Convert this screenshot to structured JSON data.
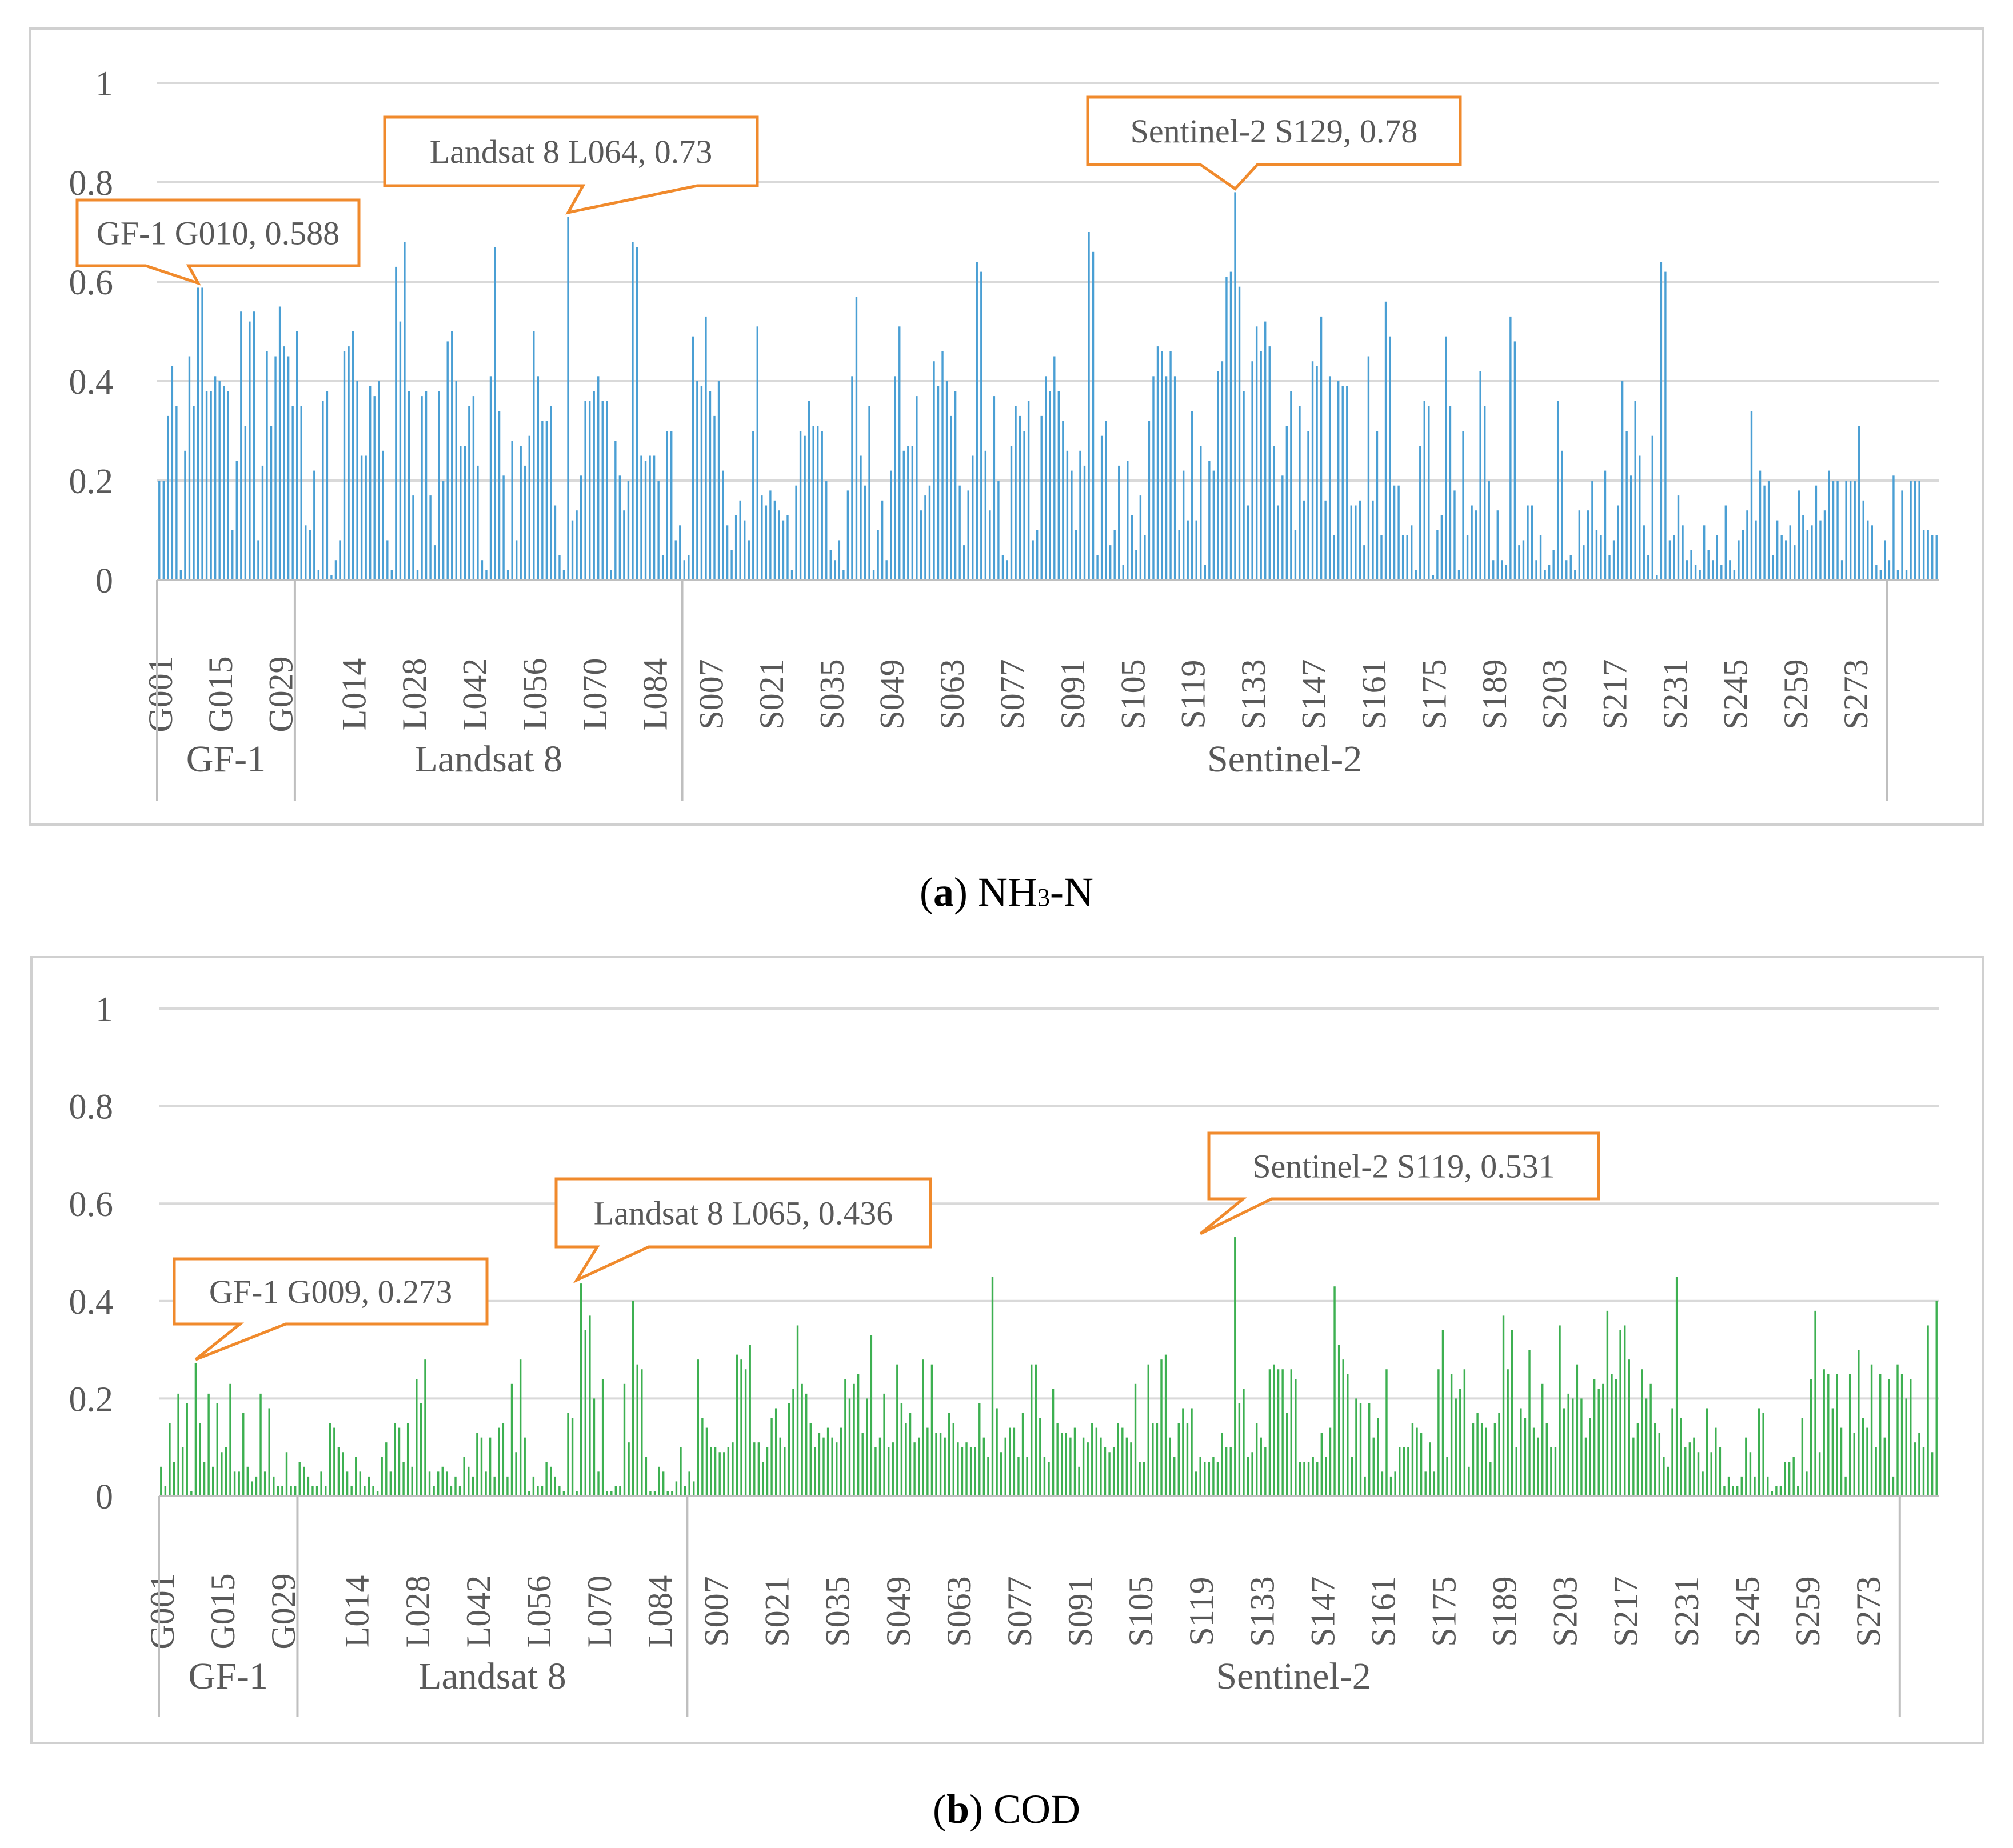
{
  "figure": {
    "captions": [
      {
        "letter": "a",
        "open": "(",
        "close": ")",
        "text": " NH",
        "sub": "3",
        "tail": "-N"
      },
      {
        "letter": "b",
        "open": "(",
        "close": ")",
        "text": " COD",
        "sub": "",
        "tail": ""
      }
    ]
  },
  "chart_data": [
    {
      "type": "bar",
      "title": "(a) NH3-N",
      "color": "#4a9fd4",
      "ylim": [
        0,
        1
      ],
      "yticks": [
        0,
        0.2,
        0.4,
        0.6,
        0.8,
        1
      ],
      "ytick_labels": [
        "0",
        "0.2",
        "0.4",
        "0.6",
        "0.8",
        "1"
      ],
      "grid": true,
      "xtick_labels": [
        "G001",
        "G015",
        "G029",
        "L014",
        "L028",
        "L042",
        "L056",
        "L070",
        "L084",
        "S007",
        "S021",
        "S035",
        "S049",
        "S063",
        "S077",
        "S091",
        "S105",
        "S119",
        "S133",
        "S147",
        "S161",
        "S175",
        "S189",
        "S203",
        "S217",
        "S231",
        "S245",
        "S259",
        "S273"
      ],
      "groups": [
        {
          "name": "GF-1",
          "prefix": "G",
          "count": 32
        },
        {
          "name": "Landsat 8",
          "prefix": "L",
          "count": 90
        },
        {
          "name": "Sentinel-2",
          "prefix": "S",
          "count": 280
        }
      ],
      "annotations": [
        {
          "text": "GF-1 G010, 0.588",
          "category": "G010",
          "value": 0.588
        },
        {
          "text": "Landsat 8 L064, 0.73",
          "category": "L064",
          "value": 0.73
        },
        {
          "text": "Sentinel-2 S129, 0.78",
          "category": "S129",
          "value": 0.78
        }
      ],
      "values": [
        0.2,
        0.2,
        0.33,
        0.43,
        0.35,
        0.02,
        0.26,
        0.45,
        0.35,
        0.588,
        0.588,
        0.38,
        0.38,
        0.41,
        0.4,
        0.39,
        0.38,
        0.1,
        0.24,
        0.54,
        0.31,
        0.52,
        0.54,
        0.08,
        0.23,
        0.46,
        0.31,
        0.45,
        0.55,
        0.47,
        0.45,
        0.35,
        0.5,
        0.35,
        0.11,
        0.1,
        0.22,
        0.02,
        0.36,
        0.38,
        0.01,
        0.04,
        0.08,
        0.46,
        0.47,
        0.5,
        0.4,
        0.25,
        0.25,
        0.39,
        0.37,
        0.4,
        0.26,
        0.08,
        0.02,
        0.63,
        0.52,
        0.68,
        0.38,
        0.17,
        0.02,
        0.37,
        0.38,
        0.17,
        0.07,
        0.38,
        0.2,
        0.48,
        0.5,
        0.4,
        0.27,
        0.27,
        0.35,
        0.37,
        0.23,
        0.04,
        0.02,
        0.41,
        0.67,
        0.34,
        0.21,
        0.02,
        0.28,
        0.08,
        0.27,
        0.23,
        0.29,
        0.5,
        0.41,
        0.32,
        0.32,
        0.35,
        0.15,
        0.05,
        0.02,
        0.73,
        0.12,
        0.14,
        0.21,
        0.36,
        0.36,
        0.38,
        0.41,
        0.36,
        0.36,
        0.02,
        0.28,
        0.21,
        0.14,
        0.2,
        0.68,
        0.67,
        0.25,
        0.24,
        0.25,
        0.25,
        0.2,
        0.05,
        0.3,
        0.3,
        0.08,
        0.11,
        0.04,
        0.05,
        0.49,
        0.4,
        0.39,
        0.53,
        0.38,
        0.33,
        0.4,
        0.22,
        0.11,
        0.06,
        0.13,
        0.16,
        0.12,
        0.08,
        0.3,
        0.51,
        0.17,
        0.15,
        0.18,
        0.16,
        0.14,
        0.12,
        0.13,
        0.02,
        0.19,
        0.3,
        0.29,
        0.36,
        0.31,
        0.31,
        0.3,
        0.2,
        0.06,
        0.04,
        0.08,
        0.02,
        0.18,
        0.41,
        0.57,
        0.25,
        0.19,
        0.35,
        0.02,
        0.1,
        0.16,
        0.04,
        0.22,
        0.41,
        0.51,
        0.26,
        0.27,
        0.27,
        0.37,
        0.14,
        0.17,
        0.19,
        0.44,
        0.39,
        0.46,
        0.4,
        0.33,
        0.38,
        0.19,
        0.07,
        0.18,
        0.25,
        0.64,
        0.62,
        0.26,
        0.14,
        0.37,
        0.2,
        0.05,
        0.04,
        0.27,
        0.35,
        0.33,
        0.3,
        0.36,
        0.08,
        0.1,
        0.33,
        0.41,
        0.38,
        0.45,
        0.38,
        0.32,
        0.26,
        0.22,
        0.1,
        0.26,
        0.23,
        0.7,
        0.66,
        0.05,
        0.29,
        0.32,
        0.07,
        0.1,
        0.23,
        0.03,
        0.24,
        0.13,
        0.06,
        0.17,
        0.09,
        0.32,
        0.41,
        0.47,
        0.46,
        0.41,
        0.46,
        0.41,
        0.1,
        0.22,
        0.12,
        0.34,
        0.12,
        0.27,
        0.03,
        0.24,
        0.22,
        0.42,
        0.44,
        0.61,
        0.62,
        0.78,
        0.59,
        0.38,
        0.15,
        0.44,
        0.51,
        0.46,
        0.52,
        0.47,
        0.27,
        0.15,
        0.21,
        0.31,
        0.38,
        0.1,
        0.35,
        0.16,
        0.3,
        0.44,
        0.43,
        0.53,
        0.16,
        0.41,
        0.09,
        0.4,
        0.39,
        0.39,
        0.15,
        0.15,
        0.16,
        0.07,
        0.45,
        0.16,
        0.3,
        0.09,
        0.56,
        0.49,
        0.19,
        0.19,
        0.09,
        0.09,
        0.11,
        0.02,
        0.27,
        0.36,
        0.35,
        0.01,
        0.1,
        0.13,
        0.49,
        0.35,
        0.18,
        0.02,
        0.3,
        0.09,
        0.15,
        0.14,
        0.42,
        0.35,
        0.2,
        0.04,
        0.14,
        0.04,
        0.03,
        0.53,
        0.48,
        0.07,
        0.08,
        0.15,
        0.15,
        0.04,
        0.09,
        0.02,
        0.03,
        0.06,
        0.36,
        0.26,
        0.04,
        0.05,
        0.02,
        0.14,
        0.07,
        0.14,
        0.2,
        0.1,
        0.09,
        0.22,
        0.05,
        0.08,
        0.15,
        0.4,
        0.3,
        0.21,
        0.36,
        0.25,
        0.11,
        0.05,
        0.29,
        0.01,
        0.64,
        0.62,
        0.08,
        0.09,
        0.17,
        0.11,
        0.04,
        0.06,
        0.03,
        0.02,
        0.11,
        0.06,
        0.04,
        0.09,
        0.03,
        0.15,
        0.04,
        0.02,
        0.08,
        0.1,
        0.14,
        0.34,
        0.12,
        0.22,
        0.19,
        0.2,
        0.05,
        0.12,
        0.09,
        0.08,
        0.11,
        0.07,
        0.18,
        0.13,
        0.1,
        0.11,
        0.19,
        0.12,
        0.14,
        0.22,
        0.2,
        0.2,
        0.04,
        0.2,
        0.2,
        0.2,
        0.31,
        0.16,
        0.12,
        0.11,
        0.03,
        0.02,
        0.08,
        0.04,
        0.21,
        0.02,
        0.18,
        0.02,
        0.2,
        0.2,
        0.2,
        0.1,
        0.1,
        0.09,
        0.09
      ]
    },
    {
      "type": "bar",
      "title": "(b) COD",
      "color": "#3db051",
      "ylim": [
        0,
        1
      ],
      "yticks": [
        0,
        0.2,
        0.4,
        0.6,
        0.8,
        1
      ],
      "ytick_labels": [
        "0",
        "0.2",
        "0.4",
        "0.6",
        "0.8",
        "1"
      ],
      "grid": true,
      "xtick_labels": [
        "G001",
        "G015",
        "G029",
        "L014",
        "L028",
        "L042",
        "L056",
        "L070",
        "L084",
        "S007",
        "S021",
        "S035",
        "S049",
        "S063",
        "S077",
        "S091",
        "S105",
        "S119",
        "S133",
        "S147",
        "S161",
        "S175",
        "S189",
        "S203",
        "S217",
        "S231",
        "S245",
        "S259",
        "S273"
      ],
      "groups": [
        {
          "name": "GF-1",
          "prefix": "G",
          "count": 32
        },
        {
          "name": "Landsat 8",
          "prefix": "L",
          "count": 90
        },
        {
          "name": "Sentinel-2",
          "prefix": "S",
          "count": 280
        }
      ],
      "annotations": [
        {
          "text": "GF-1 G009, 0.273",
          "category": "G009",
          "value": 0.273
        },
        {
          "text": "Landsat 8 L065, 0.436",
          "category": "L065",
          "value": 0.436
        },
        {
          "text": "Sentinel-2 S119, 0.531",
          "category": "S119",
          "value": 0.531
        }
      ],
      "values": [
        0.06,
        0.02,
        0.15,
        0.07,
        0.21,
        0.1,
        0.19,
        0.01,
        0.273,
        0.15,
        0.07,
        0.21,
        0.06,
        0.19,
        0.09,
        0.1,
        0.23,
        0.05,
        0.05,
        0.17,
        0.06,
        0.03,
        0.04,
        0.21,
        0.05,
        0.18,
        0.04,
        0.02,
        0.02,
        0.09,
        0.02,
        0.02,
        0.07,
        0.06,
        0.04,
        0.02,
        0.02,
        0.05,
        0.02,
        0.15,
        0.14,
        0.1,
        0.09,
        0.05,
        0.02,
        0.08,
        0.05,
        0.02,
        0.04,
        0.02,
        0.01,
        0.08,
        0.11,
        0.05,
        0.15,
        0.14,
        0.07,
        0.15,
        0.06,
        0.24,
        0.19,
        0.28,
        0.05,
        0.02,
        0.05,
        0.06,
        0.05,
        0.02,
        0.04,
        0.02,
        0.08,
        0.06,
        0.04,
        0.13,
        0.12,
        0.05,
        0.12,
        0.04,
        0.14,
        0.15,
        0.04,
        0.23,
        0.09,
        0.28,
        0.12,
        0.01,
        0.04,
        0.02,
        0.02,
        0.07,
        0.06,
        0.04,
        0.02,
        0.01,
        0.17,
        0.16,
        0.01,
        0.436,
        0.34,
        0.37,
        0.2,
        0.05,
        0.24,
        0.01,
        0.01,
        0.02,
        0.02,
        0.23,
        0.11,
        0.4,
        0.27,
        0.26,
        0.08,
        0.01,
        0.01,
        0.06,
        0.05,
        0.01,
        0.01,
        0.03,
        0.1,
        0.02,
        0.05,
        0.03,
        0.28,
        0.16,
        0.14,
        0.1,
        0.1,
        0.09,
        0.09,
        0.1,
        0.11,
        0.29,
        0.28,
        0.26,
        0.31,
        0.11,
        0.11,
        0.07,
        0.1,
        0.16,
        0.18,
        0.12,
        0.1,
        0.19,
        0.22,
        0.35,
        0.23,
        0.21,
        0.15,
        0.1,
        0.13,
        0.12,
        0.14,
        0.12,
        0.11,
        0.14,
        0.24,
        0.2,
        0.23,
        0.25,
        0.13,
        0.2,
        0.33,
        0.1,
        0.12,
        0.21,
        0.1,
        0.11,
        0.27,
        0.19,
        0.15,
        0.17,
        0.11,
        0.12,
        0.28,
        0.14,
        0.27,
        0.13,
        0.13,
        0.12,
        0.17,
        0.15,
        0.11,
        0.1,
        0.11,
        0.1,
        0.1,
        0.19,
        0.12,
        0.08,
        0.45,
        0.18,
        0.09,
        0.12,
        0.14,
        0.14,
        0.08,
        0.17,
        0.08,
        0.27,
        0.27,
        0.16,
        0.08,
        0.07,
        0.22,
        0.15,
        0.13,
        0.13,
        0.12,
        0.14,
        0.06,
        0.12,
        0.11,
        0.15,
        0.14,
        0.12,
        0.1,
        0.09,
        0.1,
        0.15,
        0.14,
        0.12,
        0.11,
        0.23,
        0.07,
        0.07,
        0.27,
        0.15,
        0.15,
        0.28,
        0.29,
        0.12,
        0.08,
        0.15,
        0.18,
        0.15,
        0.18,
        0.05,
        0.08,
        0.07,
        0.07,
        0.08,
        0.07,
        0.13,
        0.1,
        0.1,
        0.531,
        0.19,
        0.22,
        0.08,
        0.09,
        0.15,
        0.12,
        0.1,
        0.26,
        0.27,
        0.26,
        0.26,
        0.17,
        0.26,
        0.24,
        0.07,
        0.07,
        0.07,
        0.08,
        0.07,
        0.13,
        0.08,
        0.14,
        0.43,
        0.31,
        0.28,
        0.25,
        0.08,
        0.2,
        0.19,
        0.04,
        0.19,
        0.12,
        0.16,
        0.05,
        0.26,
        0.04,
        0.05,
        0.1,
        0.1,
        0.1,
        0.15,
        0.14,
        0.13,
        0.05,
        0.11,
        0.05,
        0.26,
        0.34,
        0.08,
        0.25,
        0.2,
        0.22,
        0.26,
        0.06,
        0.15,
        0.17,
        0.15,
        0.14,
        0.07,
        0.15,
        0.17,
        0.37,
        0.26,
        0.34,
        0.1,
        0.18,
        0.16,
        0.3,
        0.14,
        0.12,
        0.23,
        0.15,
        0.1,
        0.1,
        0.35,
        0.18,
        0.21,
        0.2,
        0.27,
        0.2,
        0.12,
        0.16,
        0.24,
        0.22,
        0.23,
        0.38,
        0.25,
        0.24,
        0.34,
        0.35,
        0.28,
        0.12,
        0.15,
        0.26,
        0.2,
        0.23,
        0.15,
        0.13,
        0.08,
        0.06,
        0.18,
        0.45,
        0.16,
        0.1,
        0.11,
        0.12,
        0.09,
        0.05,
        0.18,
        0.09,
        0.14,
        0.1,
        0.02,
        0.04,
        0.02,
        0.02,
        0.04,
        0.12,
        0.09,
        0.04,
        0.18,
        0.17,
        0.04,
        0.01,
        0.02,
        0.02,
        0.07,
        0.07,
        0.08,
        0.02,
        0.16,
        0.05,
        0.24,
        0.38,
        0.09,
        0.26,
        0.25,
        0.18,
        0.25,
        0.14,
        0.04,
        0.25,
        0.13,
        0.3,
        0.16,
        0.14,
        0.27,
        0.1,
        0.25,
        0.12,
        0.24,
        0.04,
        0.27,
        0.25,
        0.2,
        0.24,
        0.11,
        0.13,
        0.1,
        0.35,
        0.09,
        0.4
      ]
    }
  ]
}
